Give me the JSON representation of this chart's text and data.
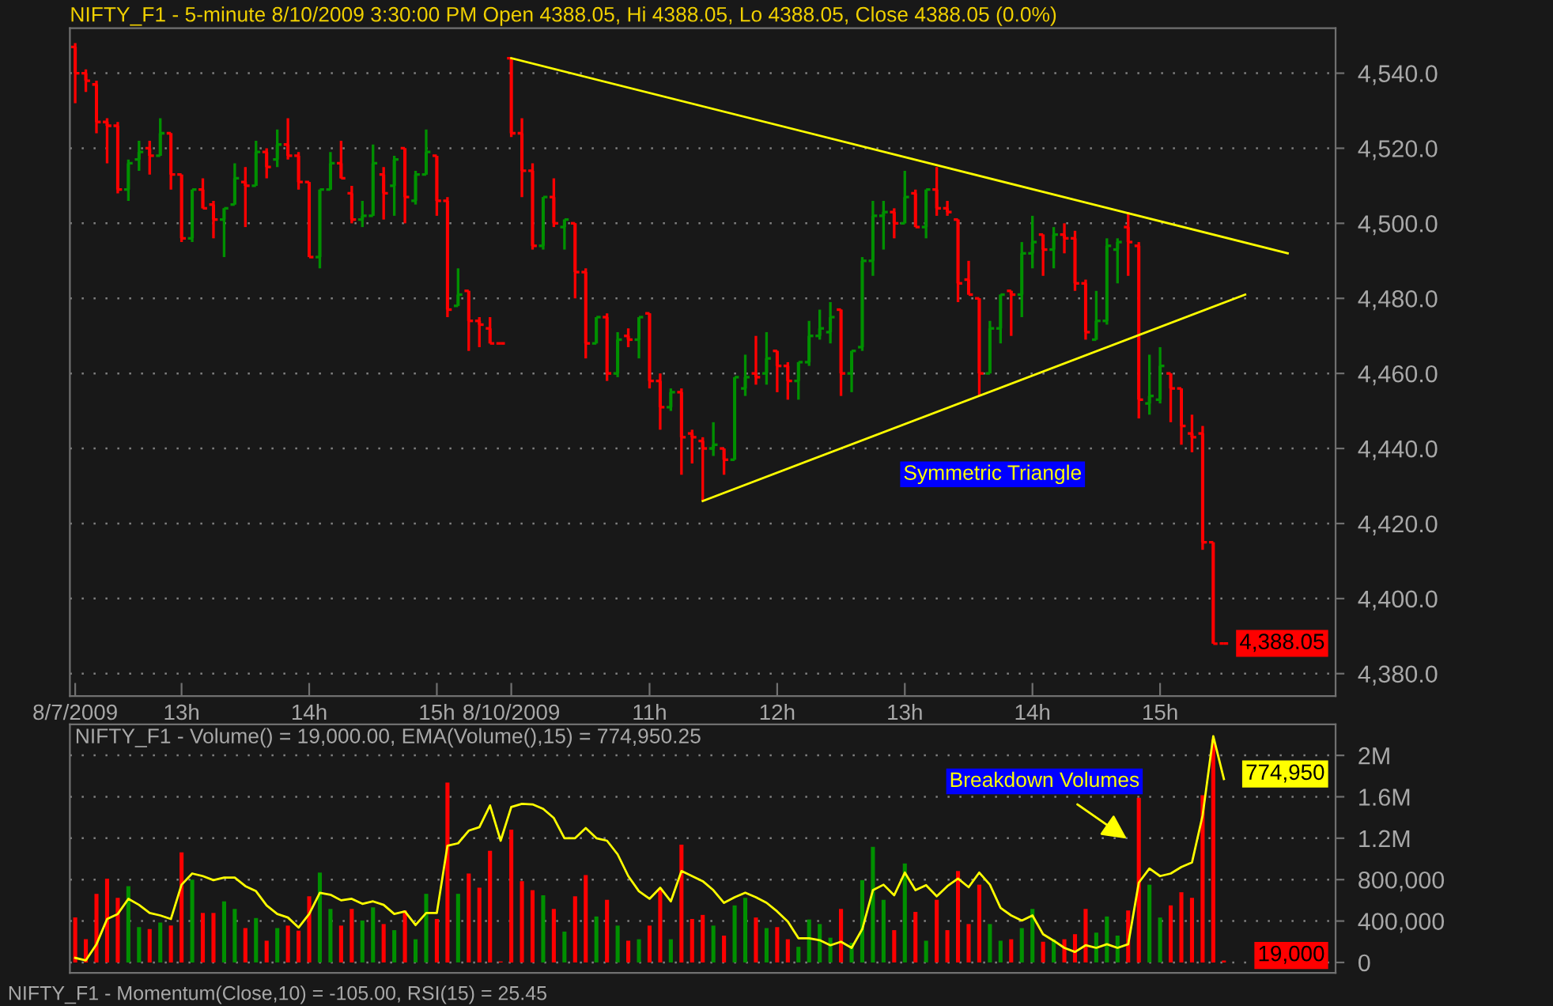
{
  "chart_data": [
    {
      "type": "candlestick",
      "title": "NIFTY_F1 - 5-minute 8/10/2009 3:30:00 PM Open 4388.05, Hi 4388.05, Lo 4388.05, Close 4388.05 (0.0%)",
      "categories": [
        "8/7/2009",
        null,
        null,
        null,
        null,
        null,
        null,
        null,
        null,
        null,
        "13h",
        null,
        null,
        null,
        null,
        null,
        null,
        null,
        null,
        null,
        null,
        null,
        "14h",
        null,
        null,
        null,
        null,
        null,
        null,
        null,
        null,
        null,
        null,
        null,
        "15h",
        null,
        null,
        null,
        null,
        null,
        null,
        "8/10/2009",
        null,
        null,
        null,
        null,
        null,
        null,
        null,
        null,
        null,
        null,
        null,
        null,
        "11h",
        null,
        null,
        null,
        null,
        null,
        null,
        null,
        null,
        null,
        null,
        null,
        "12h",
        null,
        null,
        null,
        null,
        null,
        null,
        null,
        null,
        null,
        null,
        null,
        "13h",
        null,
        null,
        null,
        null,
        null,
        null,
        null,
        null,
        null,
        null,
        null,
        "14h",
        null,
        null,
        null,
        null,
        null,
        null,
        null,
        null,
        null,
        null,
        null,
        "15h",
        null,
        null,
        null,
        null,
        null,
        null,
        null,
        null,
        null,
        null,
        null,
        null,
        null,
        null,
        null,
        null
      ],
      "ohlc": [
        [
          4547,
          4548,
          4532,
          4540
        ],
        [
          4540,
          4541,
          4535,
          4538
        ],
        [
          4537,
          4538,
          4524,
          4527
        ],
        [
          4527,
          4528,
          4516,
          4526
        ],
        [
          4526,
          4527,
          4508,
          4509
        ],
        [
          4509,
          4517,
          4506,
          4516
        ],
        [
          4517,
          4522,
          4514,
          4519
        ],
        [
          4520,
          4522,
          4513,
          4518
        ],
        [
          4518,
          4528,
          4518,
          4524
        ],
        [
          4524,
          4524,
          4509,
          4513
        ],
        [
          4513,
          4513,
          4495,
          4496
        ],
        [
          4496,
          4509,
          4495,
          4509
        ],
        [
          4509,
          4512,
          4504,
          4504
        ],
        [
          4505,
          4506,
          4496,
          4501
        ],
        [
          4501,
          4504,
          4491,
          4504
        ],
        [
          4505,
          4516,
          4505,
          4512
        ],
        [
          4511,
          4515,
          4499,
          4510
        ],
        [
          4510,
          4522,
          4510,
          4519
        ],
        [
          4519,
          4520,
          4512,
          4515
        ],
        [
          4517,
          4525,
          4515,
          4521
        ],
        [
          4521,
          4528,
          4517,
          4518
        ],
        [
          4518,
          4519,
          4509,
          4511
        ],
        [
          4511,
          4511,
          4491,
          4491
        ],
        [
          4491,
          4509,
          4488,
          4509
        ],
        [
          4509,
          4519,
          4509,
          4516
        ],
        [
          4516,
          4522,
          4512,
          4512
        ],
        [
          4508,
          4510,
          4500,
          4501
        ],
        [
          4501,
          4506,
          4499,
          4502
        ],
        [
          4502,
          4521,
          4502,
          4516
        ],
        [
          4513,
          4515,
          4501,
          4508
        ],
        [
          4510,
          4518,
          4502,
          4517
        ],
        [
          4520,
          4520,
          4500,
          4507
        ],
        [
          4506,
          4514,
          4505,
          4513
        ],
        [
          4513,
          4525,
          4513,
          4519
        ],
        [
          4518,
          4518,
          4502,
          4506
        ],
        [
          4506,
          4507,
          4475,
          4477
        ],
        [
          4478,
          4488,
          4478,
          4481
        ],
        [
          4482,
          4482,
          4466,
          4474
        ],
        [
          4474,
          4475,
          4467,
          4473
        ],
        [
          4472,
          4475,
          4468,
          4468
        ],
        [
          4468,
          4468,
          4468,
          4468
        ],
        [
          4544,
          4544,
          4523,
          4524
        ],
        [
          4524,
          4528,
          4507,
          4514
        ],
        [
          4514,
          4516,
          4493,
          4494
        ],
        [
          4494,
          4507,
          4493,
          4507
        ],
        [
          4507,
          4512,
          4499,
          4500
        ],
        [
          4499,
          4501,
          4493,
          4501
        ],
        [
          4500,
          4500,
          4480,
          4487
        ],
        [
          4487,
          4488,
          4464,
          4468
        ],
        [
          4468,
          4475,
          4468,
          4475
        ],
        [
          4475,
          4476,
          4458,
          4460
        ],
        [
          4460,
          4471,
          4459,
          4469
        ],
        [
          4470,
          4472,
          4467,
          4469
        ],
        [
          4469,
          4475,
          4464,
          4475
        ],
        [
          4476,
          4476,
          4456,
          4458
        ],
        [
          4458,
          4460,
          4445,
          4451
        ],
        [
          4451,
          4456,
          4450,
          4455
        ],
        [
          4455,
          4456,
          4433,
          4443
        ],
        [
          4444,
          4445,
          4436,
          4443
        ],
        [
          4442,
          4443,
          4426,
          4440
        ],
        [
          4440,
          4447,
          4438,
          4441
        ],
        [
          4440,
          4440,
          4433,
          4437
        ],
        [
          4437,
          4459,
          4437,
          4459
        ],
        [
          4456,
          4465,
          4454,
          4459
        ],
        [
          4460,
          4470,
          4457,
          4459
        ],
        [
          4460,
          4471,
          4457,
          4464
        ],
        [
          4466,
          4466,
          4455,
          4462
        ],
        [
          4462,
          4463,
          4453,
          4458
        ],
        [
          4458,
          4463,
          4453,
          4463
        ],
        [
          4463,
          4474,
          4462,
          4470
        ],
        [
          4470,
          4477,
          4469,
          4472
        ],
        [
          4471,
          4479,
          4468,
          4475
        ],
        [
          4477,
          4477,
          4454,
          4460
        ],
        [
          4460,
          4466,
          4455,
          4466
        ],
        [
          4467,
          4491,
          4466,
          4490
        ],
        [
          4490,
          4506,
          4486,
          4502
        ],
        [
          4502,
          4506,
          4493,
          4503
        ],
        [
          4503,
          4504,
          4496,
          4500
        ],
        [
          4500,
          4514,
          4500,
          4507
        ],
        [
          4508,
          4509,
          4499,
          4499
        ],
        [
          4499,
          4509,
          4496,
          4509
        ],
        [
          4509,
          4515,
          4502,
          4504
        ],
        [
          4504,
          4506,
          4502,
          4503
        ],
        [
          4501,
          4501,
          4479,
          4484
        ],
        [
          4485,
          4490,
          4481,
          4481
        ],
        [
          4480,
          4480,
          4454,
          4460
        ],
        [
          4460,
          4474,
          4460,
          4472
        ],
        [
          4472,
          4481,
          4468,
          4481
        ],
        [
          4482,
          4482,
          4470,
          4481
        ],
        [
          4481,
          4495,
          4475,
          4492
        ],
        [
          4492,
          4502,
          4488,
          4495
        ],
        [
          4497,
          4497,
          4486,
          4493
        ],
        [
          4493,
          4499,
          4488,
          4497
        ],
        [
          4497,
          4500,
          4492,
          4496
        ],
        [
          4496,
          4498,
          4482,
          4484
        ],
        [
          4484,
          4485,
          4469,
          4471
        ],
        [
          4469,
          4482,
          4469,
          4474
        ],
        [
          4474,
          4496,
          4473,
          4494
        ],
        [
          4493,
          4496,
          4484,
          4495
        ],
        [
          4499,
          4503,
          4486,
          4495
        ],
        [
          4494,
          4495,
          4448,
          4453
        ],
        [
          4452,
          4465,
          4449,
          4454
        ],
        [
          4453,
          4467,
          4452,
          4462
        ],
        [
          4460,
          4460,
          4447,
          4456
        ],
        [
          4456,
          4456,
          4441,
          4446
        ],
        [
          4444,
          4449,
          4439,
          4443
        ],
        [
          4444,
          4446,
          4413,
          4415
        ],
        [
          4415,
          4415,
          4388,
          4388
        ],
        [
          4388.05,
          4388.05,
          4388.05,
          4388.05
        ],
        null,
        null,
        null,
        null,
        null,
        null,
        null,
        null,
        null,
        null
      ],
      "colors": [
        "#ff0000",
        "#ff0000",
        "#ff0000",
        "#ff0000",
        "#ff0000",
        "#009000",
        "#009000",
        "#ff0000",
        "#009000",
        "#ff0000",
        "#ff0000",
        "#009000",
        "#ff0000",
        "#ff0000",
        "#009000",
        "#009000",
        "#ff0000",
        "#009000",
        "#ff0000",
        "#009000",
        "#ff0000",
        "#ff0000",
        "#ff0000",
        "#009000",
        "#009000",
        "#ff0000",
        "#ff0000",
        "#009000",
        "#009000",
        "#ff0000",
        "#009000",
        "#ff0000",
        "#009000",
        "#009000",
        "#ff0000",
        "#ff0000",
        "#009000",
        "#ff0000",
        "#ff0000",
        "#ff0000",
        "#ff0000",
        "#ff0000",
        "#ff0000",
        "#ff0000",
        "#009000",
        "#ff0000",
        "#009000",
        "#ff0000",
        "#ff0000",
        "#009000",
        "#ff0000",
        "#009000",
        "#ff0000",
        "#009000",
        "#ff0000",
        "#ff0000",
        "#009000",
        "#ff0000",
        "#ff0000",
        "#ff0000",
        "#009000",
        "#ff0000",
        "#009000",
        "#009000",
        "#ff0000",
        "#009000",
        "#ff0000",
        "#ff0000",
        "#009000",
        "#009000",
        "#009000",
        "#009000",
        "#ff0000",
        "#009000",
        "#009000",
        "#009000",
        "#009000",
        "#ff0000",
        "#009000",
        "#ff0000",
        "#009000",
        "#ff0000",
        "#ff0000",
        "#ff0000",
        "#ff0000",
        "#ff0000",
        "#009000",
        "#009000",
        "#ff0000",
        "#009000",
        "#009000",
        "#ff0000",
        "#009000",
        "#ff0000",
        "#ff0000",
        "#ff0000",
        "#009000",
        "#009000",
        "#009000",
        "#ff0000",
        "#ff0000",
        "#009000",
        "#009000",
        "#ff0000",
        "#ff0000",
        "#ff0000",
        "#ff0000",
        "#ff0000",
        "#ff0000",
        null,
        null,
        null,
        null,
        null,
        null,
        null,
        null,
        null,
        null
      ],
      "series": [
        {
          "type": "line",
          "color": "#ffff00",
          "values": [
            null,
            null,
            null,
            null,
            null,
            null,
            null,
            null,
            null,
            null,
            null,
            null,
            null,
            null,
            null,
            null,
            null,
            null,
            null,
            null,
            null,
            null,
            null,
            null,
            null,
            null,
            null,
            null,
            null,
            null,
            null,
            null,
            null,
            null,
            null,
            null,
            null,
            null,
            null,
            null,
            null,
            4544,
            null,
            null,
            null,
            null,
            null,
            null,
            null,
            null,
            null,
            null,
            null,
            null,
            null,
            null,
            null,
            null,
            null,
            null,
            null,
            null,
            null,
            null,
            null,
            null,
            null,
            null,
            null,
            null,
            null,
            null,
            null,
            null,
            null,
            null,
            null,
            null,
            null,
            null,
            null,
            null,
            null,
            null,
            null,
            null,
            null,
            null,
            null,
            null,
            null,
            null,
            null,
            null,
            null,
            null,
            null,
            null,
            null,
            null,
            null,
            null,
            null,
            null,
            null,
            null,
            null,
            null,
            null,
            null,
            null,
            null,
            null,
            null,
            4492,
            null,
            null,
            null,
            null
          ]
        },
        {
          "type": "line",
          "color": "#ffff00",
          "values": [
            null,
            null,
            null,
            null,
            null,
            null,
            null,
            null,
            null,
            null,
            null,
            null,
            null,
            null,
            null,
            null,
            null,
            null,
            null,
            null,
            null,
            null,
            null,
            null,
            null,
            null,
            null,
            null,
            null,
            null,
            null,
            null,
            null,
            null,
            null,
            null,
            null,
            null,
            null,
            null,
            null,
            null,
            null,
            null,
            null,
            null,
            null,
            null,
            null,
            null,
            null,
            null,
            null,
            null,
            null,
            null,
            null,
            null,
            null,
            4426,
            null,
            null,
            null,
            null,
            null,
            null,
            null,
            null,
            null,
            null,
            null,
            null,
            null,
            null,
            null,
            null,
            null,
            null,
            null,
            null,
            null,
            null,
            null,
            null,
            null,
            null,
            null,
            null,
            null,
            null,
            null,
            null,
            null,
            null,
            null,
            null,
            null,
            null,
            null,
            null,
            null,
            null,
            null,
            null,
            null,
            null,
            null,
            null,
            null,
            null,
            4481,
            null,
            null,
            null,
            null,
            null,
            null,
            null,
            null
          ]
        }
      ],
      "ylim": [
        4374,
        4552
      ],
      "yticks": [
        {
          "value": 4380,
          "label": "4,380.0"
        },
        {
          "value": 4400,
          "label": "4,400.0"
        },
        {
          "value": 4420,
          "label": "4,420.0"
        },
        {
          "value": 4440,
          "label": "4,440.0"
        },
        {
          "value": 4460,
          "label": "4,460.0"
        },
        {
          "value": 4480,
          "label": "4,480.0"
        },
        {
          "value": 4500,
          "label": "4,500.0"
        },
        {
          "value": 4520,
          "label": "4,520.0"
        },
        {
          "value": 4540,
          "label": "4,540.0"
        }
      ],
      "grid": "y",
      "annotations": [
        "Symmetric Triangle",
        "4,388.05"
      ]
    },
    {
      "type": "bar",
      "title": "NIFTY_F1 - Volume() = 19,000.00, EMA(Volume(),15) = 774,950.25",
      "categories": [
        null,
        null,
        null,
        null,
        null,
        null,
        null,
        null,
        null,
        null,
        null,
        null,
        null,
        null,
        null,
        null,
        null,
        null,
        null,
        null,
        null,
        null,
        null,
        null,
        null,
        null,
        null,
        null,
        null,
        null,
        null,
        null,
        null,
        null,
        null,
        null,
        null,
        null,
        null,
        null,
        null,
        null,
        null,
        null,
        null,
        null,
        null,
        null,
        null,
        null,
        null,
        null,
        null,
        null,
        null,
        null,
        null,
        null,
        null,
        null,
        null,
        null,
        null,
        null,
        null,
        null,
        null,
        null,
        null,
        null,
        null,
        null,
        null,
        null,
        null,
        null,
        null,
        null,
        null,
        null,
        null,
        null,
        null,
        null,
        null,
        null,
        null,
        null,
        null,
        null,
        null,
        null,
        null,
        null,
        null,
        null,
        null,
        null,
        null,
        null,
        null,
        null,
        null,
        null,
        null,
        null,
        null,
        null,
        null
      ],
      "series": [
        {
          "type": "bar",
          "colors": [
            "#ff0000",
            "#ff0000",
            "#ff0000",
            "#ff0000",
            "#ff0000",
            "#009000",
            "#009000",
            "#ff0000",
            "#009000",
            "#ff0000",
            "#ff0000",
            "#009000",
            "#ff0000",
            "#ff0000",
            "#009000",
            "#009000",
            "#ff0000",
            "#009000",
            "#ff0000",
            "#009000",
            "#ff0000",
            "#ff0000",
            "#ff0000",
            "#009000",
            "#009000",
            "#ff0000",
            "#ff0000",
            "#009000",
            "#009000",
            "#ff0000",
            "#009000",
            "#ff0000",
            "#009000",
            "#009000",
            "#ff0000",
            "#ff0000",
            "#009000",
            "#ff0000",
            "#ff0000",
            "#ff0000",
            "#ff0000",
            "#ff0000",
            "#ff0000",
            "#ff0000",
            "#009000",
            "#ff0000",
            "#009000",
            "#ff0000",
            "#ff0000",
            "#009000",
            "#ff0000",
            "#009000",
            "#ff0000",
            "#009000",
            "#ff0000",
            "#ff0000",
            "#009000",
            "#ff0000",
            "#ff0000",
            "#ff0000",
            "#009000",
            "#ff0000",
            "#009000",
            "#009000",
            "#ff0000",
            "#009000",
            "#ff0000",
            "#ff0000",
            "#009000",
            "#009000",
            "#009000",
            "#009000",
            "#ff0000",
            "#009000",
            "#009000",
            "#009000",
            "#009000",
            "#ff0000",
            "#009000",
            "#ff0000",
            "#009000",
            "#ff0000",
            "#ff0000",
            "#ff0000",
            "#ff0000",
            "#ff0000",
            "#009000",
            "#009000",
            "#ff0000",
            "#009000",
            "#009000",
            "#ff0000",
            "#009000",
            "#ff0000",
            "#ff0000",
            "#ff0000",
            "#009000",
            "#009000",
            "#009000",
            "#ff0000",
            "#ff0000",
            "#009000",
            "#009000",
            "#ff0000",
            "#ff0000",
            "#ff0000",
            "#ff0000",
            "#ff0000",
            "#ff0000"
          ],
          "values": [
            434000,
            224000,
            663000,
            810000,
            624000,
            737000,
            341000,
            322000,
            385000,
            356000,
            1063000,
            800000,
            478000,
            478000,
            590000,
            517000,
            332000,
            429000,
            210000,
            332000,
            356000,
            307000,
            639000,
            868000,
            517000,
            356000,
            517000,
            405000,
            532000,
            371000,
            312000,
            502000,
            224000,
            663000,
            420000,
            1737000,
            663000,
            859000,
            722000,
            1078000,
            10000,
            1283000,
            785000,
            698000,
            649000,
            517000,
            298000,
            639000,
            844000,
            444000,
            605000,
            356000,
            210000,
            224000,
            356000,
            712000,
            224000,
            1137000,
            420000,
            459000,
            356000,
            259000,
            551000,
            624000,
            434000,
            332000,
            341000,
            224000,
            151000,
            415000,
            371000,
            239000,
            517000,
            190000,
            795000,
            1117000,
            605000,
            312000,
            956000,
            488000,
            210000,
            605000,
            312000,
            883000,
            371000,
            751000,
            371000,
            210000,
            224000,
            332000,
            517000,
            200000,
            224000,
            224000,
            273000,
            517000,
            288000,
            444000,
            259000,
            502000,
            1590000,
            751000,
            434000,
            551000,
            678000,
            624000,
            1615000,
            2151000,
            19000
          ]
        },
        {
          "type": "line",
          "color": "#ffff00",
          "values": [
            44000,
            20000,
            176000,
            420000,
            468000,
            615000,
            556000,
            478000,
            454000,
            420000,
            751000,
            859000,
            834000,
            795000,
            820000,
            820000,
            737000,
            688000,
            551000,
            468000,
            434000,
            337000,
            468000,
            673000,
            654000,
            600000,
            615000,
            566000,
            590000,
            556000,
            468000,
            493000,
            361000,
            478000,
            478000,
            1127000,
            1151000,
            1273000,
            1307000,
            1517000,
            1176000,
            1502000,
            1532000,
            1527000,
            1483000,
            1395000,
            1200000,
            1200000,
            1298000,
            1200000,
            1176000,
            1044000,
            834000,
            688000,
            615000,
            722000,
            590000,
            883000,
            834000,
            785000,
            698000,
            576000,
            629000,
            673000,
            629000,
            576000,
            493000,
            395000,
            234000,
            234000,
            215000,
            166000,
            200000,
            141000,
            322000,
            698000,
            751000,
            649000,
            868000,
            698000,
            746000,
            639000,
            737000,
            810000,
            727000,
            868000,
            751000,
            527000,
            454000,
            405000,
            454000,
            273000,
            210000,
            141000,
            102000,
            166000,
            141000,
            176000,
            141000,
            176000,
            771000,
            907000,
            834000,
            859000,
            922000,
            966000,
            1420000,
            2185000,
            1771000
          ]
        }
      ],
      "ylim": [
        -100000,
        2300000
      ],
      "yticks": [
        0,
        {
          "value": 400000,
          "label": "400,000"
        },
        {
          "value": 800000,
          "label": "800,000"
        },
        {
          "value": 1200000,
          "label": "1.2M"
        },
        {
          "value": 1600000,
          "label": "1.6M"
        },
        {
          "value": 2000000,
          "label": "2M"
        }
      ],
      "grid": "y",
      "tick_labels": "y",
      "annotations": [
        "Breakdown Volumes",
        "774,950",
        "19,000",
        "NIFTY_F1 - Momentum(Close,10) = -105.00, RSI(15) = 25.45"
      ]
    }
  ]
}
